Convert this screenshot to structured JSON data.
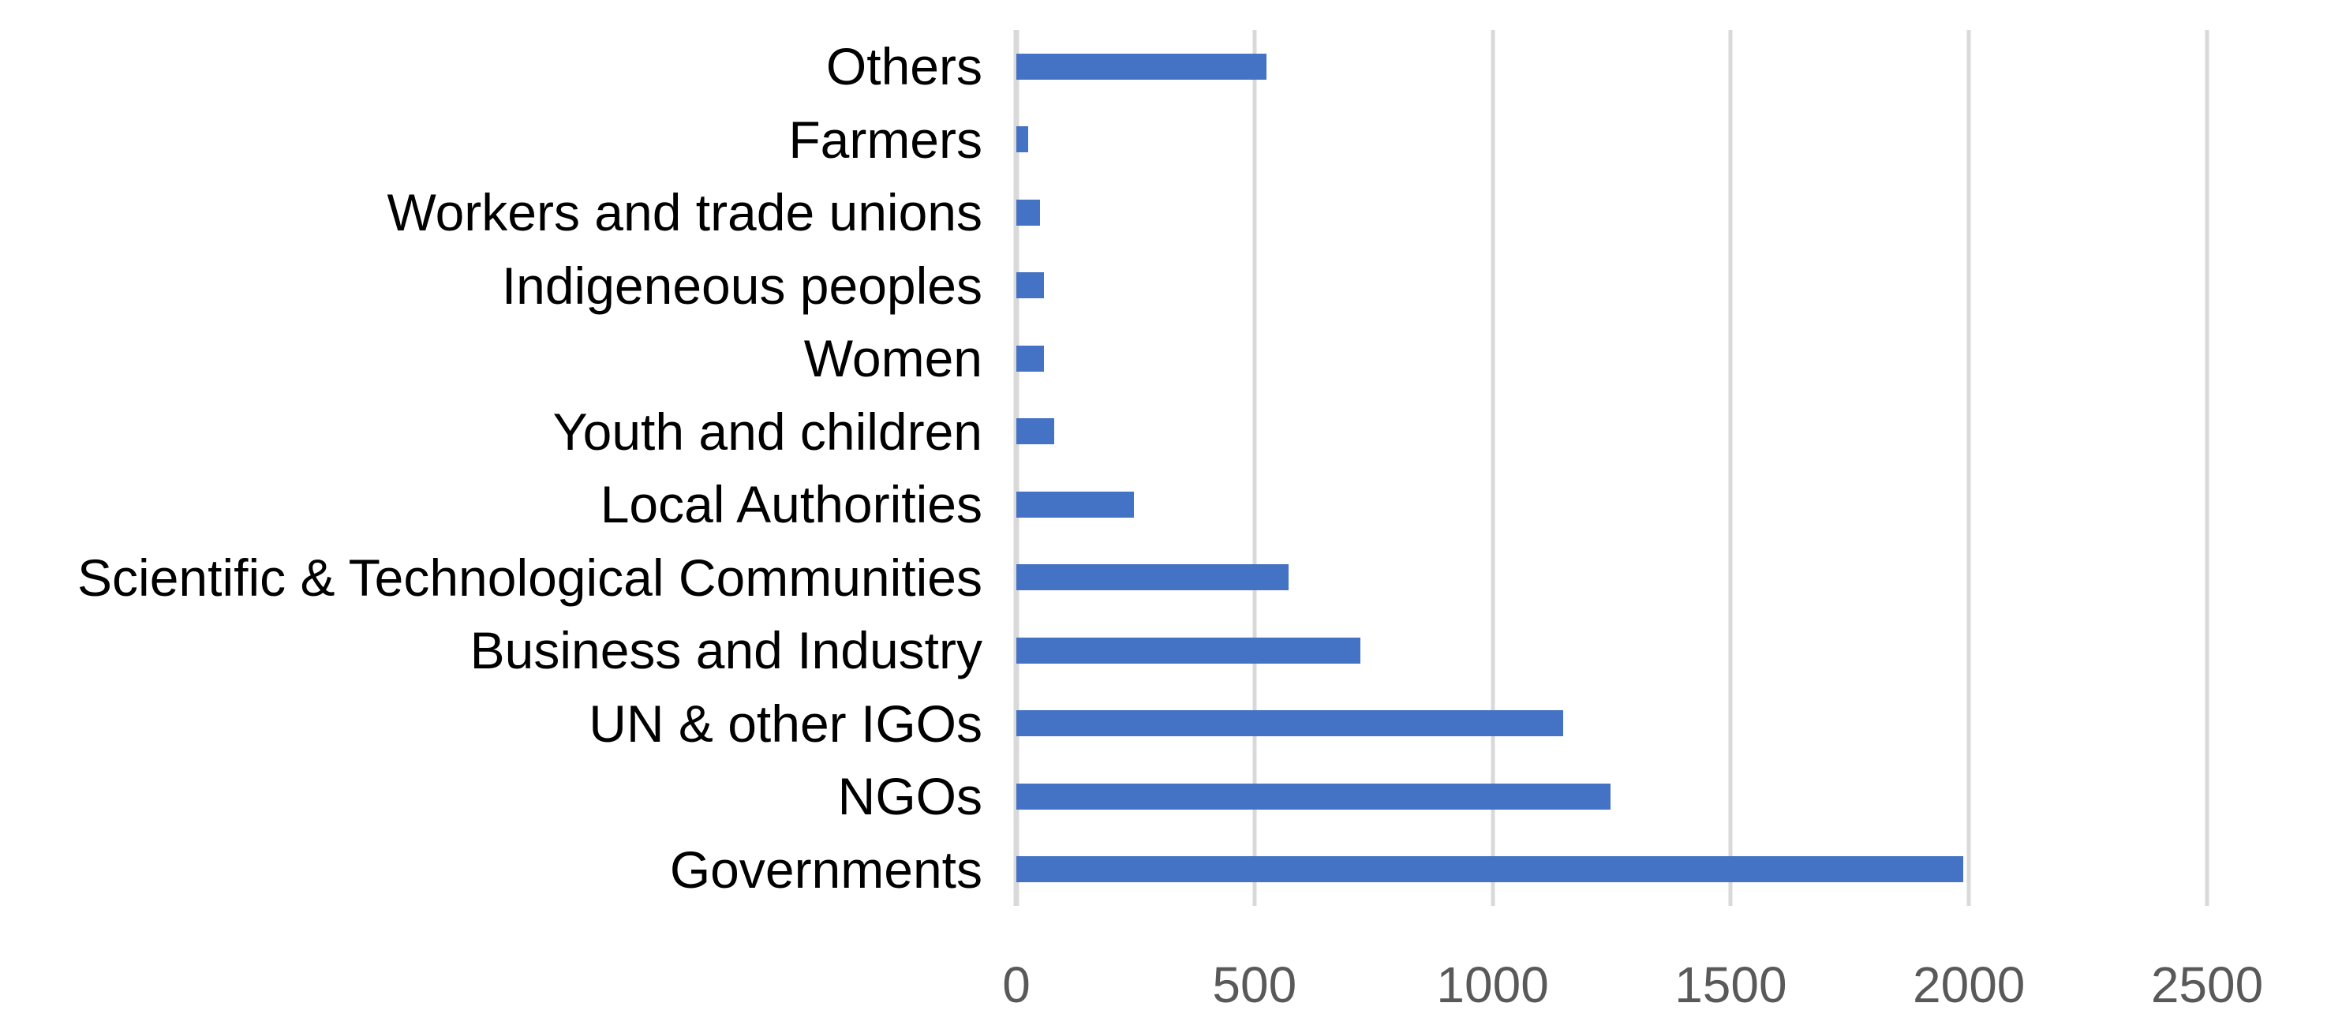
{
  "chart_data": {
    "type": "bar",
    "orientation": "horizontal",
    "title": "",
    "categories": [
      "Others",
      "Farmers",
      "Workers and trade unions",
      "Indigeneous peoples",
      "Women",
      "Youth and children",
      "Local Authorities",
      "Scientific & Technological Communities",
      "Business and Industry",
      "UN & other IGOs",
      "NGOs",
      "Governments"
    ],
    "values": [
      525,
      25,
      50,
      58,
      58,
      80,
      247,
      572,
      722,
      1148,
      1247,
      1988
    ],
    "x_axis": {
      "min": 0,
      "max": 2500,
      "tick_interval": 500,
      "ticks": [
        0,
        500,
        1000,
        1500,
        2000,
        2500
      ],
      "tick_labels": [
        "0",
        "500",
        "1000",
        "1500",
        "2000",
        "2500"
      ]
    },
    "grid": "vertical",
    "legend": "none",
    "colors": {
      "bar": "#4472C4",
      "gridline": "#D9D9D9",
      "tick_label": "#595959",
      "category_label": "#000000",
      "background": "#FFFFFF"
    }
  }
}
